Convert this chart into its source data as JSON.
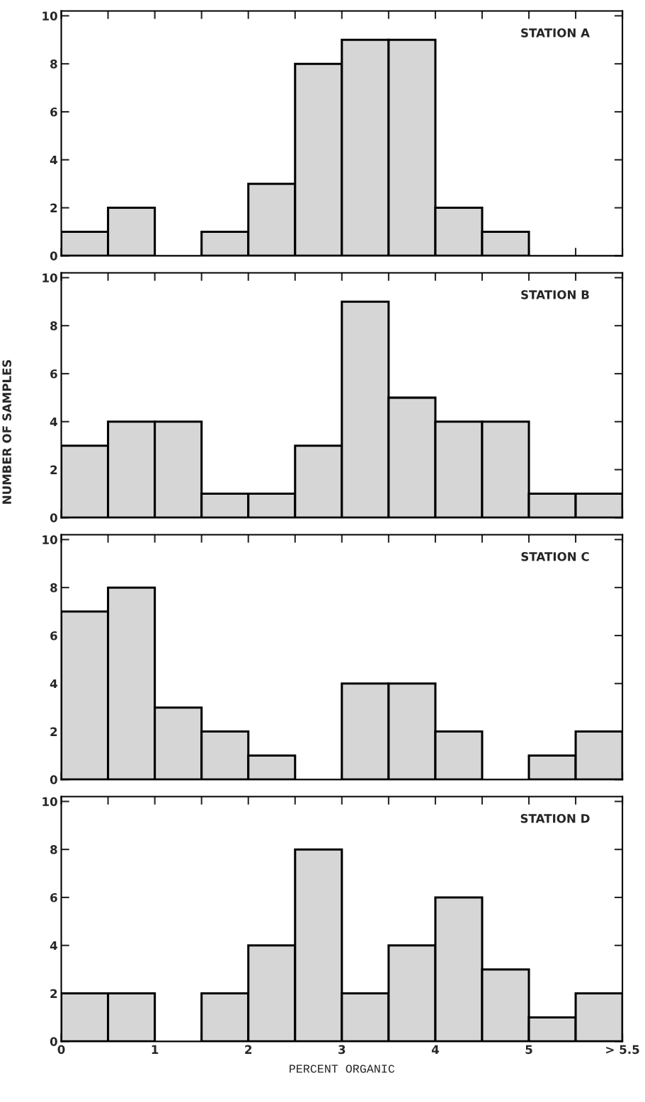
{
  "chart_data": [
    {
      "type": "histogram",
      "title": "STATION A",
      "bins": [
        0,
        0.5,
        1,
        1.5,
        2,
        2.5,
        3,
        3.5,
        4,
        4.5,
        5,
        5.5,
        6
      ],
      "values": [
        1,
        2,
        0,
        1,
        3,
        8,
        9,
        9,
        2,
        1,
        0,
        0
      ],
      "color": "#d6d6d6",
      "xlim": [
        0,
        6
      ],
      "ylim": [
        0,
        10.2
      ],
      "xticks": [
        {
          "value": 0,
          "label": null
        },
        {
          "value": 0.5,
          "label": null
        },
        {
          "value": 1,
          "label": null
        },
        {
          "value": 1.5,
          "label": null
        },
        {
          "value": 2,
          "label": null
        },
        {
          "value": 2.5,
          "label": null
        },
        {
          "value": 3,
          "label": null
        },
        {
          "value": 3.5,
          "label": null
        },
        {
          "value": 4,
          "label": null
        },
        {
          "value": 4.5,
          "label": null
        },
        {
          "value": 5,
          "label": null
        },
        {
          "value": 5.5,
          "label": null
        },
        {
          "value": 6,
          "label": null
        }
      ],
      "yticks": [
        0,
        2,
        4,
        6,
        8,
        10
      ],
      "tick_labels": "y",
      "grid": false,
      "legend": false
    },
    {
      "type": "histogram",
      "title": "STATION B",
      "ylabel": "NUMBER OF SAMPLES",
      "bins": [
        0,
        0.5,
        1,
        1.5,
        2,
        2.5,
        3,
        3.5,
        4,
        4.5,
        5,
        5.5,
        6
      ],
      "values": [
        3,
        4,
        4,
        1,
        1,
        3,
        9,
        5,
        4,
        4,
        1,
        1
      ],
      "color": "#d6d6d6",
      "xlim": [
        0,
        6
      ],
      "ylim": [
        0,
        10.2
      ],
      "xticks": [
        {
          "value": 0,
          "label": null
        },
        {
          "value": 0.5,
          "label": null
        },
        {
          "value": 1,
          "label": null
        },
        {
          "value": 1.5,
          "label": null
        },
        {
          "value": 2,
          "label": null
        },
        {
          "value": 2.5,
          "label": null
        },
        {
          "value": 3,
          "label": null
        },
        {
          "value": 3.5,
          "label": null
        },
        {
          "value": 4,
          "label": null
        },
        {
          "value": 4.5,
          "label": null
        },
        {
          "value": 5,
          "label": null
        },
        {
          "value": 5.5,
          "label": null
        },
        {
          "value": 6,
          "label": null
        }
      ],
      "yticks": [
        0,
        2,
        4,
        6,
        8,
        10
      ],
      "tick_labels": "y",
      "grid": false,
      "legend": false
    },
    {
      "type": "histogram",
      "title": "STATION C",
      "bins": [
        0,
        0.5,
        1,
        1.5,
        2,
        2.5,
        3,
        3.5,
        4,
        4.5,
        5,
        5.5,
        6
      ],
      "values": [
        7,
        8,
        3,
        2,
        1,
        0,
        4,
        4,
        2,
        0,
        1,
        2
      ],
      "color": "#d6d6d6",
      "xlim": [
        0,
        6
      ],
      "ylim": [
        0,
        10.2
      ],
      "xticks": [
        {
          "value": 0,
          "label": null
        },
        {
          "value": 0.5,
          "label": null
        },
        {
          "value": 1,
          "label": null
        },
        {
          "value": 1.5,
          "label": null
        },
        {
          "value": 2,
          "label": null
        },
        {
          "value": 2.5,
          "label": null
        },
        {
          "value": 3,
          "label": null
        },
        {
          "value": 3.5,
          "label": null
        },
        {
          "value": 4,
          "label": null
        },
        {
          "value": 4.5,
          "label": null
        },
        {
          "value": 5,
          "label": null
        },
        {
          "value": 5.5,
          "label": null
        },
        {
          "value": 6,
          "label": null
        }
      ],
      "yticks": [
        0,
        2,
        4,
        6,
        8,
        10
      ],
      "tick_labels": "y",
      "grid": false,
      "legend": false
    },
    {
      "type": "histogram",
      "title": "STATION D",
      "xlabel": "PERCENT ORGANIC",
      "bins": [
        0,
        0.5,
        1,
        1.5,
        2,
        2.5,
        3,
        3.5,
        4,
        4.5,
        5,
        5.5,
        6
      ],
      "values": [
        2,
        2,
        0,
        2,
        4,
        8,
        2,
        4,
        6,
        3,
        1,
        2
      ],
      "color": "#d6d6d6",
      "xlim": [
        0,
        6
      ],
      "ylim": [
        0,
        10.2
      ],
      "xticks": [
        0,
        {
          "value": 0.5,
          "label": null
        },
        1,
        {
          "value": 1.5,
          "label": null
        },
        2,
        {
          "value": 2.5,
          "label": null
        },
        3,
        {
          "value": 3.5,
          "label": null
        },
        4,
        {
          "value": 4.5,
          "label": null
        },
        5,
        {
          "value": 5.5,
          "label": null
        },
        {
          "value": 6,
          "label": "> 5.5"
        }
      ],
      "yticks": [
        0,
        2,
        4,
        6,
        8,
        10
      ],
      "grid": false,
      "legend": false
    }
  ]
}
